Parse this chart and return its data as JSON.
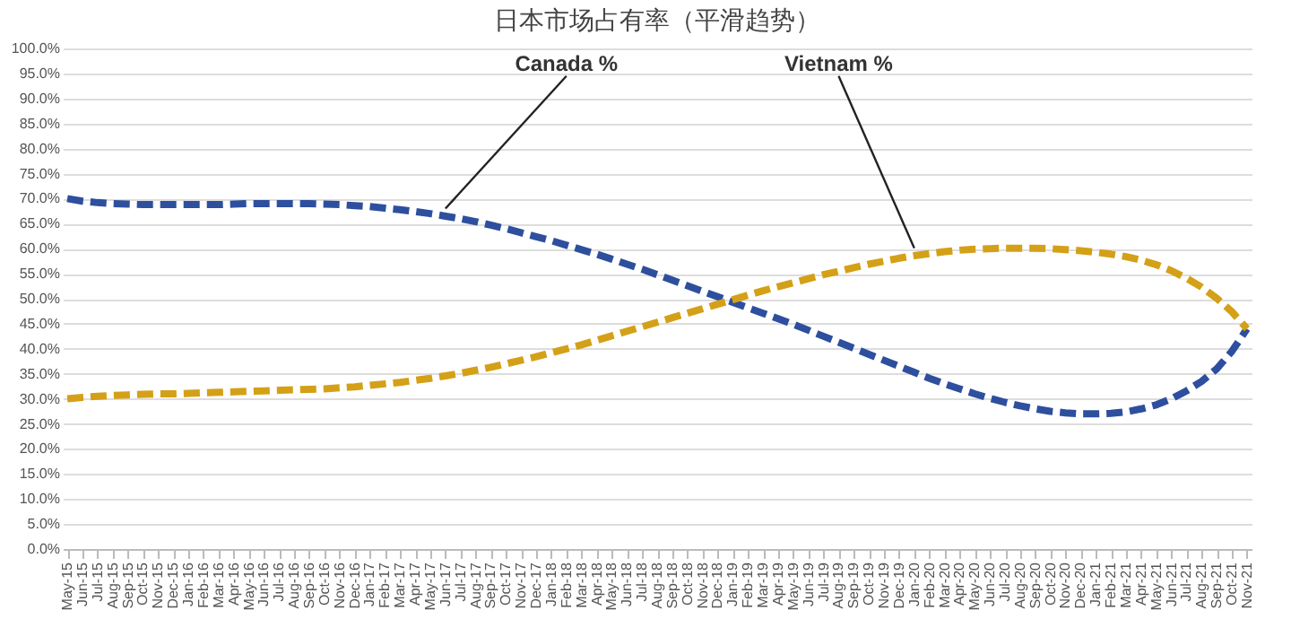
{
  "chart_data": {
    "type": "line",
    "title": "日本市场占有率（平滑趋势）",
    "categories": [
      "May-15",
      "Jun-15",
      "Jul-15",
      "Aug-15",
      "Sep-15",
      "Oct-15",
      "Nov-15",
      "Dec-15",
      "Jan-16",
      "Feb-16",
      "Mar-16",
      "Apr-16",
      "May-16",
      "Jun-16",
      "Jul-16",
      "Aug-16",
      "Sep-16",
      "Oct-16",
      "Nov-16",
      "Dec-16",
      "Jan-17",
      "Feb-17",
      "Mar-17",
      "Apr-17",
      "May-17",
      "Jun-17",
      "Jul-17",
      "Aug-17",
      "Sep-17",
      "Oct-17",
      "Nov-17",
      "Dec-17",
      "Jan-18",
      "Feb-18",
      "Mar-18",
      "Apr-18",
      "May-18",
      "Jun-18",
      "Jul-18",
      "Aug-18",
      "Sep-18",
      "Oct-18",
      "Nov-18",
      "Dec-18",
      "Jan-19",
      "Feb-19",
      "Mar-19",
      "Apr-19",
      "May-19",
      "Jun-19",
      "Jul-19",
      "Aug-19",
      "Sep-19",
      "Oct-19",
      "Nov-19",
      "Dec-19",
      "Jan-20",
      "Feb-20",
      "Mar-20",
      "Apr-20",
      "May-20",
      "Jun-20",
      "Jul-20",
      "Aug-20",
      "Sep-20",
      "Oct-20",
      "Nov-20",
      "Dec-20",
      "Jan-21",
      "Feb-21",
      "Mar-21",
      "Apr-21",
      "May-21",
      "Jun-21",
      "Jul-21",
      "Aug-21",
      "Sep-21",
      "Oct-21",
      "Nov-21"
    ],
    "series": [
      {
        "name": "Canada %",
        "color": "#2e4f9e",
        "values": [
          70,
          69.5,
          69.2,
          69,
          68.9,
          68.8,
          68.8,
          68.8,
          68.8,
          68.8,
          68.8,
          68.9,
          69,
          69,
          69,
          69,
          69,
          68.9,
          68.8,
          68.6,
          68.4,
          68.1,
          67.8,
          67.4,
          67,
          66.5,
          66,
          65.4,
          64.7,
          64,
          63.2,
          62.4,
          61.6,
          60.7,
          59.8,
          58.9,
          57.9,
          56.9,
          55.9,
          54.8,
          53.7,
          52.6,
          51.5,
          50.4,
          49.3,
          48.2,
          47.1,
          46,
          44.9,
          43.7,
          42.5,
          41.3,
          40.1,
          38.9,
          37.7,
          36.5,
          35.3,
          34.1,
          33,
          32,
          31,
          30.1,
          29.3,
          28.6,
          28,
          27.5,
          27.2,
          27,
          27,
          27.1,
          27.4,
          28,
          28.8,
          30,
          31.6,
          33.5,
          36,
          39.5,
          44
        ]
      },
      {
        "name": "Vietnam %",
        "color": "#d4a017",
        "values": [
          30,
          30.3,
          30.5,
          30.7,
          30.8,
          30.9,
          31,
          31,
          31.1,
          31.2,
          31.3,
          31.4,
          31.5,
          31.6,
          31.7,
          31.8,
          31.9,
          32,
          32.2,
          32.4,
          32.7,
          33,
          33.3,
          33.7,
          34.1,
          34.6,
          35.1,
          35.7,
          36.3,
          37,
          37.7,
          38.4,
          39.2,
          40,
          40.8,
          41.7,
          42.6,
          43.5,
          44.4,
          45.3,
          46.2,
          47.1,
          48,
          48.9,
          49.8,
          50.7,
          51.6,
          52.4,
          53.2,
          54,
          54.8,
          55.5,
          56.2,
          56.9,
          57.5,
          58.1,
          58.6,
          59,
          59.4,
          59.7,
          59.9,
          60,
          60.1,
          60.1,
          60.1,
          60,
          59.8,
          59.6,
          59.3,
          58.9,
          58.4,
          57.7,
          56.8,
          55.6,
          54.1,
          52.3,
          50.1,
          47.4,
          44
        ]
      }
    ],
    "ylim": [
      0,
      100
    ],
    "yticks": [
      {
        "value": 0,
        "label": "0.0%"
      },
      {
        "value": 5,
        "label": "5.0%"
      },
      {
        "value": 10,
        "label": "10.0%"
      },
      {
        "value": 15,
        "label": "15.0%"
      },
      {
        "value": 20,
        "label": "20.0%"
      },
      {
        "value": 25,
        "label": "25.0%"
      },
      {
        "value": 30,
        "label": "30.0%"
      },
      {
        "value": 35,
        "label": "35.0%"
      },
      {
        "value": 40,
        "label": "40.0%"
      },
      {
        "value": 45,
        "label": "45.0%"
      },
      {
        "value": 50,
        "label": "50.0%"
      },
      {
        "value": 55,
        "label": "55.0%"
      },
      {
        "value": 60,
        "label": "60.0%"
      },
      {
        "value": 65,
        "label": "65.0%"
      },
      {
        "value": 70,
        "label": "70.0%"
      },
      {
        "value": 75,
        "label": "75.0%"
      },
      {
        "value": 80,
        "label": "80.0%"
      },
      {
        "value": 85,
        "label": "85.0%"
      },
      {
        "value": 90,
        "label": "90.0%"
      },
      {
        "value": 95,
        "label": "95.0%"
      },
      {
        "value": 100,
        "label": "100.0%"
      }
    ],
    "grid": "y",
    "legend": false,
    "line_style": "dashed",
    "marker": "none"
  }
}
